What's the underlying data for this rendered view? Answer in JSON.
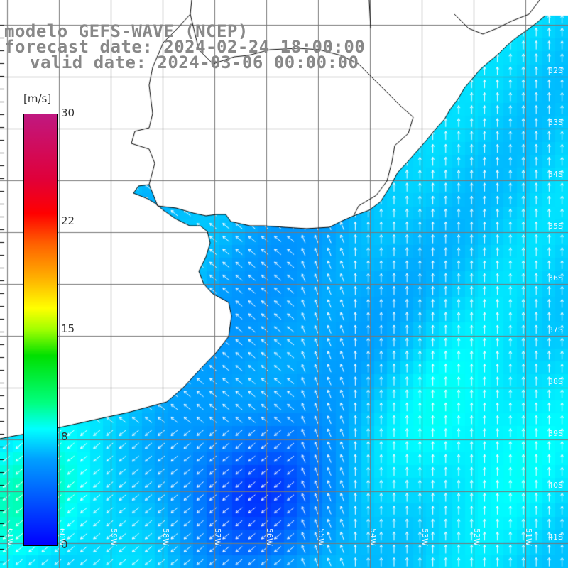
{
  "titles": {
    "line1": "modelo GEFS-WAVE (NCEP)",
    "line2": "forecast date: 2024-02-24 18:00:00",
    "line3": "valid date: 2024-03-06 00:00:00"
  },
  "colorbar": {
    "unit": "[m/s]",
    "range": [
      0,
      30
    ],
    "ticks": [
      "30",
      "22",
      "15",
      "8",
      "0"
    ],
    "colors": [
      "#0000ff",
      "#00a0ff",
      "#00ffff",
      "#00e000",
      "#ffff00",
      "#ff6000",
      "#ff0000",
      "#c01880"
    ]
  },
  "map": {
    "land_color": "#ffffff",
    "grid_color": "#777777",
    "coast_color": "#000000",
    "arrow_color": "#ffffff",
    "lat_labels": [
      "32S",
      "33S",
      "34S",
      "35S",
      "36S",
      "37S",
      "38S",
      "39S",
      "40S",
      "41S"
    ],
    "lon_labels": [
      "61W",
      "60W",
      "59W",
      "58W",
      "57W",
      "56W",
      "55W",
      "54W",
      "53W",
      "52W",
      "51W"
    ]
  }
}
